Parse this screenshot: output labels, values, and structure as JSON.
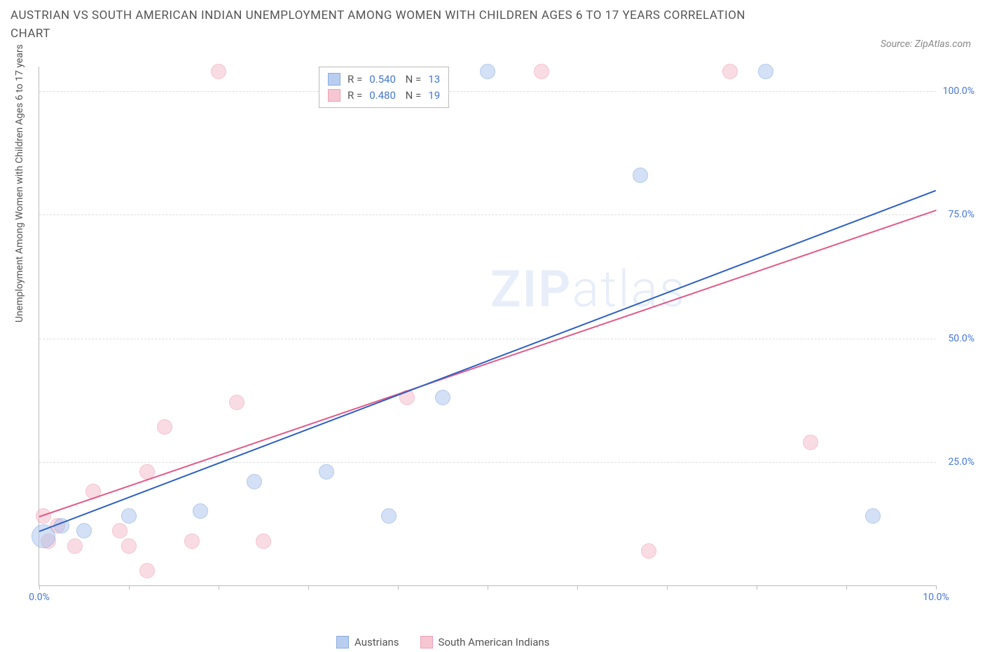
{
  "title": "AUSTRIAN VS SOUTH AMERICAN INDIAN UNEMPLOYMENT AMONG WOMEN WITH CHILDREN AGES 6 TO 17 YEARS CORRELATION CHART",
  "source": "Source: ZipAtlas.com",
  "watermark_a": "ZIP",
  "watermark_b": "atlas",
  "ylabel": "Unemployment Among Women with Children Ages 6 to 17 years",
  "chart": {
    "type": "scatter",
    "xlim": [
      0,
      10
    ],
    "ylim": [
      0,
      105
    ],
    "xticks": [
      0,
      1,
      2,
      3,
      4,
      5,
      6,
      7,
      8,
      9,
      10
    ],
    "xtick_labels": {
      "0": "0.0%",
      "10": "10.0%"
    },
    "yticks": [
      25,
      50,
      75,
      100
    ],
    "ytick_labels": [
      "25.0%",
      "50.0%",
      "75.0%",
      "100.0%"
    ],
    "grid_color": "#dddddd",
    "axis_color": "#bbbbbb",
    "background_color": "#ffffff",
    "label_color": "#4577d4",
    "title_color": "#555555",
    "title_fontsize": 17,
    "label_fontsize": 14
  },
  "series": {
    "austrians": {
      "label": "Austrians",
      "color_fill": "#a8c3ec",
      "color_stroke": "#6b97d8",
      "fill_opacity": 0.5,
      "marker_radius": 10,
      "R": "0.540",
      "N": "13",
      "trend": {
        "x1": 0,
        "y1": 11,
        "x2": 10,
        "y2": 80,
        "color": "#2c5fc4",
        "width": 2
      },
      "points": [
        {
          "x": 0.05,
          "y": 10,
          "r": 16
        },
        {
          "x": 0.25,
          "y": 12,
          "r": 10
        },
        {
          "x": 0.5,
          "y": 11,
          "r": 10
        },
        {
          "x": 1.0,
          "y": 14,
          "r": 10
        },
        {
          "x": 1.8,
          "y": 15,
          "r": 10
        },
        {
          "x": 2.4,
          "y": 21,
          "r": 10
        },
        {
          "x": 3.2,
          "y": 23,
          "r": 10
        },
        {
          "x": 3.9,
          "y": 14,
          "r": 10
        },
        {
          "x": 4.5,
          "y": 38,
          "r": 10
        },
        {
          "x": 5.0,
          "y": 104,
          "r": 10
        },
        {
          "x": 6.7,
          "y": 83,
          "r": 10
        },
        {
          "x": 8.1,
          "y": 104,
          "r": 10
        },
        {
          "x": 9.3,
          "y": 14,
          "r": 10
        }
      ]
    },
    "south_american_indians": {
      "label": "South American Indians",
      "color_fill": "#f5b8c8",
      "color_stroke": "#e98aa5",
      "fill_opacity": 0.5,
      "marker_radius": 10,
      "R": "0.480",
      "N": "19",
      "trend": {
        "x1": 0,
        "y1": 14,
        "x2": 10,
        "y2": 76,
        "color": "#e25a88",
        "width": 2
      },
      "points": [
        {
          "x": 0.05,
          "y": 14,
          "r": 10
        },
        {
          "x": 0.1,
          "y": 9,
          "r": 10
        },
        {
          "x": 0.2,
          "y": 12,
          "r": 10
        },
        {
          "x": 0.4,
          "y": 8,
          "r": 10
        },
        {
          "x": 0.6,
          "y": 19,
          "r": 10
        },
        {
          "x": 0.9,
          "y": 11,
          "r": 10
        },
        {
          "x": 1.0,
          "y": 8,
          "r": 10
        },
        {
          "x": 1.2,
          "y": 3,
          "r": 10
        },
        {
          "x": 1.2,
          "y": 23,
          "r": 10
        },
        {
          "x": 1.4,
          "y": 32,
          "r": 10
        },
        {
          "x": 1.7,
          "y": 9,
          "r": 10
        },
        {
          "x": 2.0,
          "y": 104,
          "r": 10
        },
        {
          "x": 2.2,
          "y": 37,
          "r": 10
        },
        {
          "x": 2.5,
          "y": 9,
          "r": 10
        },
        {
          "x": 4.1,
          "y": 38,
          "r": 10
        },
        {
          "x": 5.6,
          "y": 104,
          "r": 10
        },
        {
          "x": 6.8,
          "y": 7,
          "r": 10
        },
        {
          "x": 7.7,
          "y": 104,
          "r": 10
        },
        {
          "x": 8.6,
          "y": 29,
          "r": 10
        }
      ]
    }
  },
  "legend_stats_labels": {
    "R": "R =",
    "N": "N ="
  }
}
